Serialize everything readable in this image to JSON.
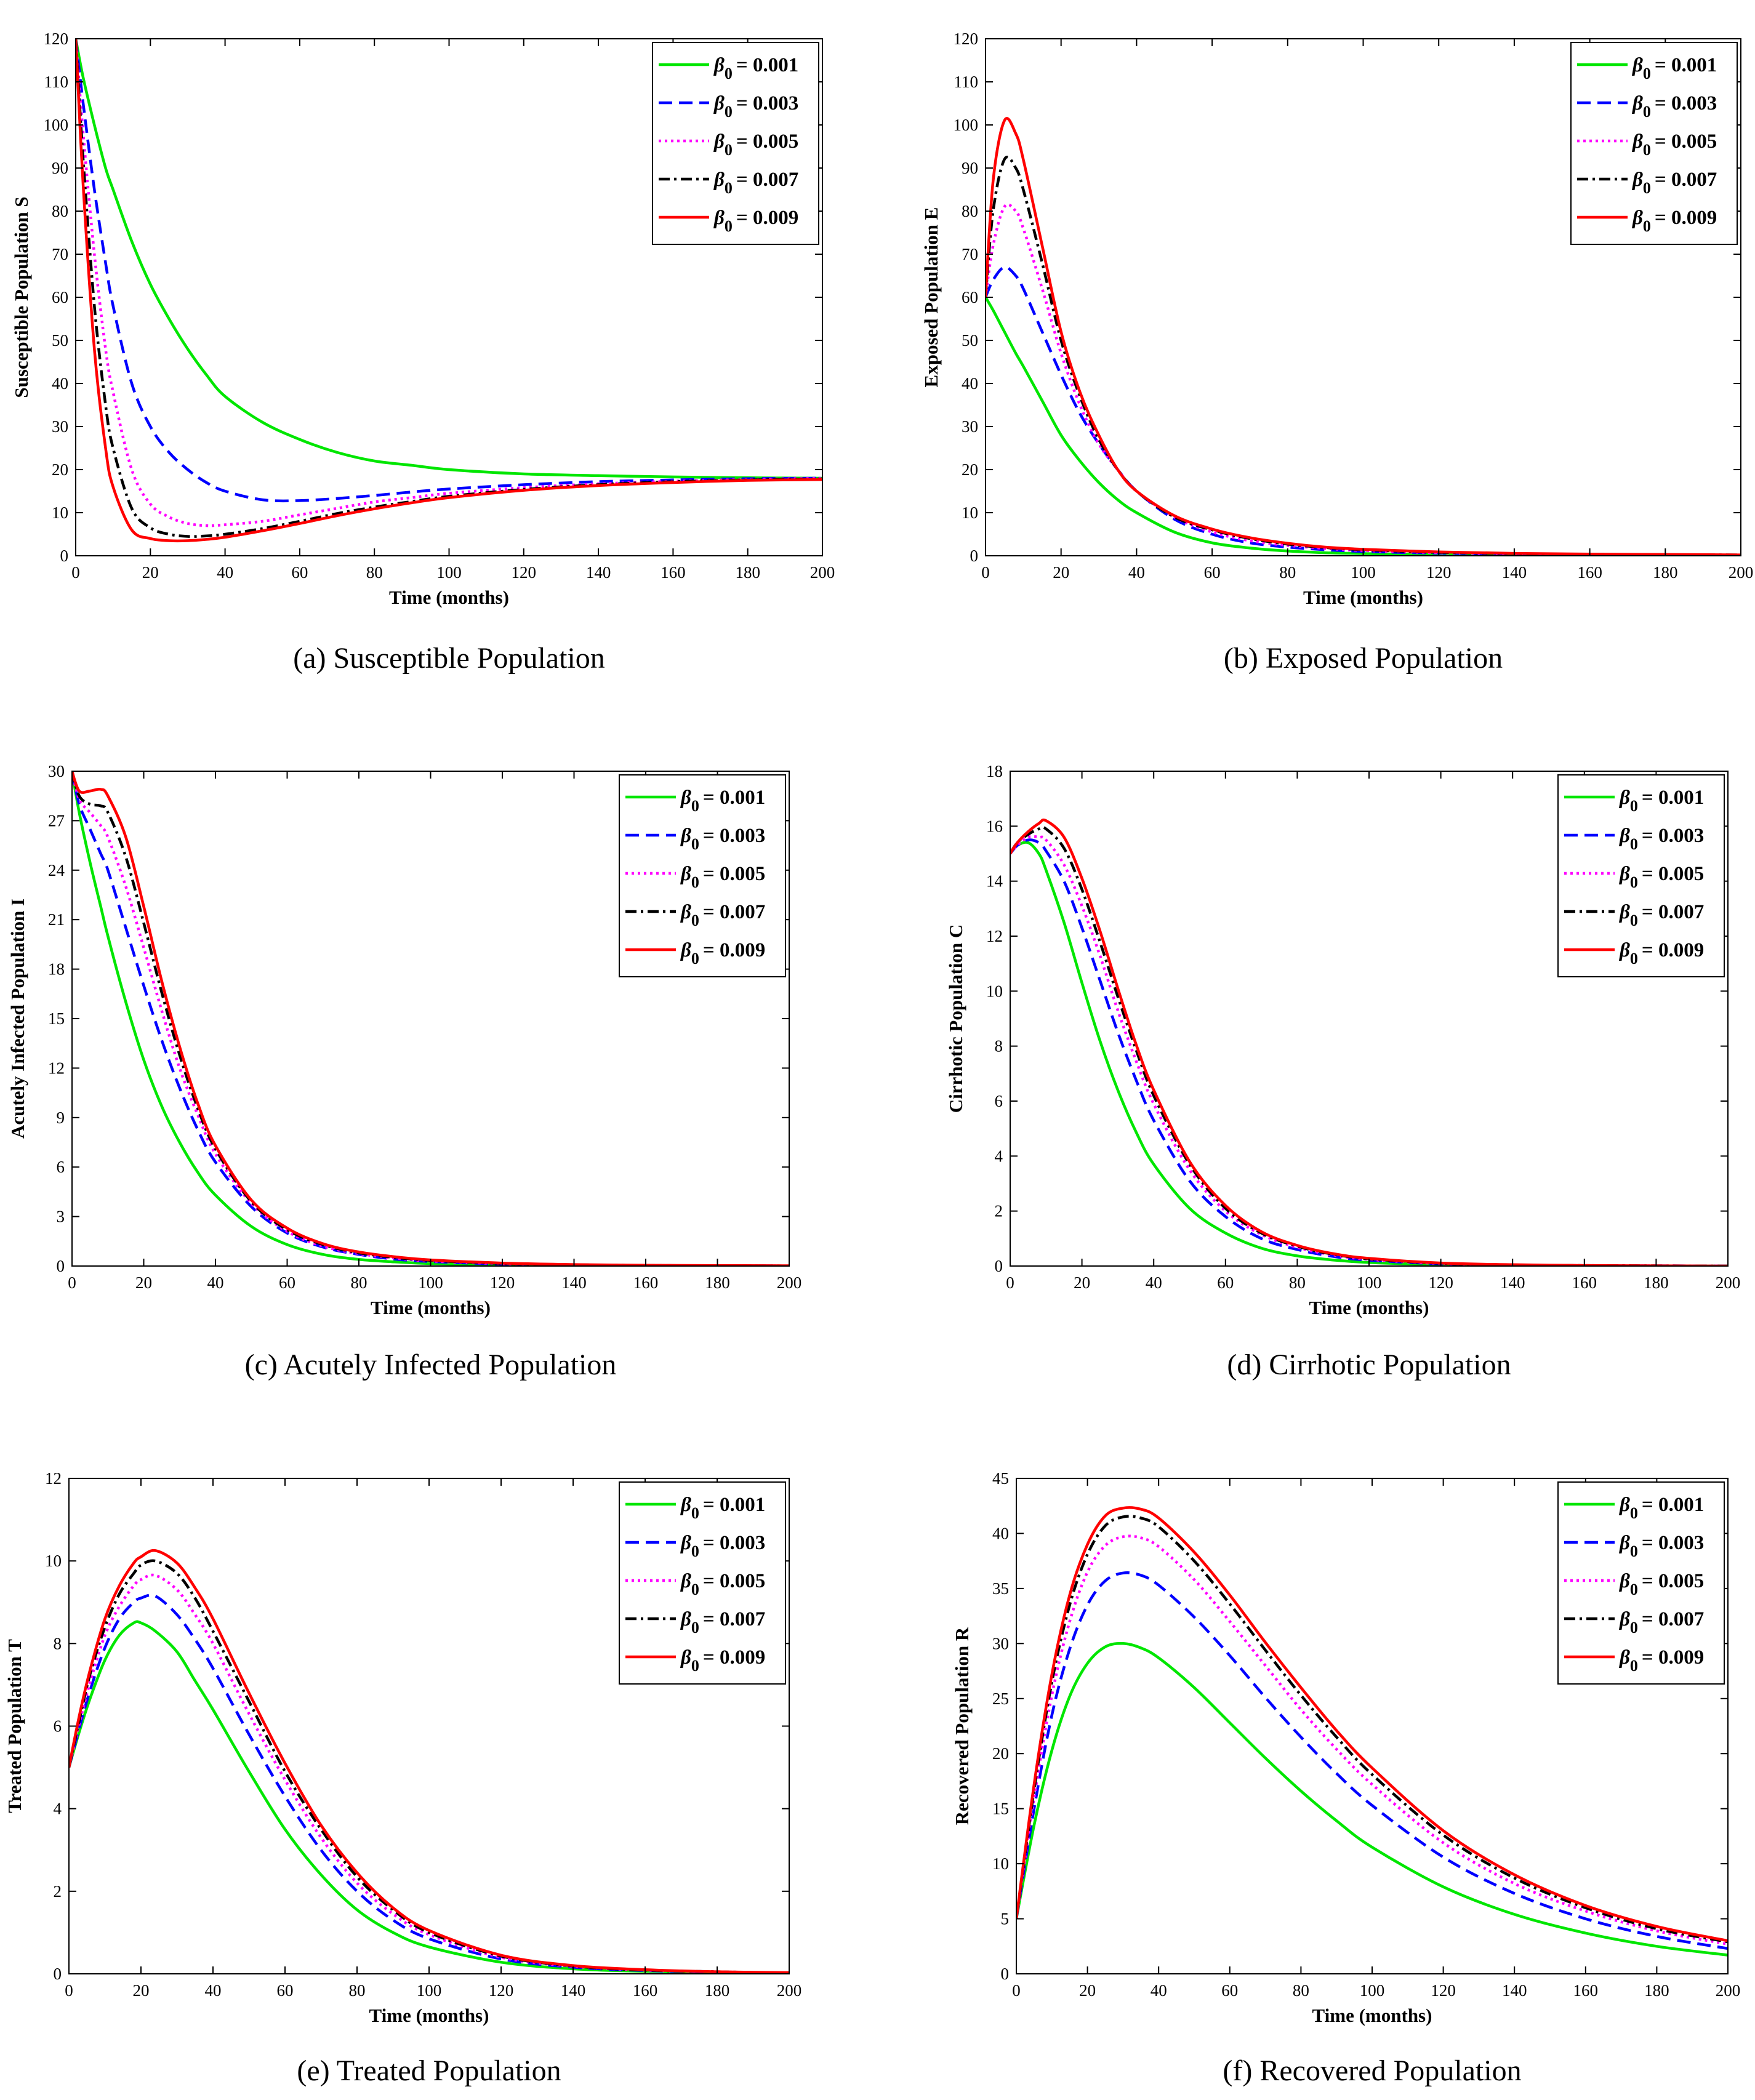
{
  "figure": {
    "legend_labels": [
      "= 0.001",
      "= 0.003",
      "= 0.005",
      "= 0.007",
      "= 0.009"
    ],
    "legend_symbol": "β",
    "legend_subscript": "0",
    "beta_values": [
      "0.001",
      "0.003",
      "0.005",
      "0.007",
      "0.009"
    ],
    "series_colors": [
      "#00e600",
      "#0000ff",
      "#ff00ff",
      "#000000",
      "#ff0000"
    ],
    "series_styles": [
      "solid",
      "dashed",
      "dotted",
      "dashdot",
      "solid"
    ]
  },
  "chart_data": [
    {
      "type": "line",
      "caption": "(a) Susceptible Population",
      "xlabel": "Time (months)",
      "ylabel": "Susceptible Population S",
      "xlim": [
        0,
        200
      ],
      "ylim": [
        0,
        120
      ],
      "xticks": [
        0,
        20,
        40,
        60,
        80,
        100,
        120,
        140,
        160,
        180,
        200
      ],
      "yticks": [
        0,
        10,
        20,
        30,
        40,
        50,
        60,
        70,
        80,
        90,
        100,
        110,
        120
      ],
      "legend_position": "top-right",
      "x": [
        0,
        2,
        5,
        8,
        10,
        15,
        20,
        25,
        30,
        35,
        40,
        50,
        60,
        70,
        80,
        90,
        100,
        120,
        140,
        160,
        180,
        200
      ],
      "series": [
        {
          "name": "β0 = 0.001",
          "values": [
            120,
            111,
            100,
            90,
            85,
            73,
            63,
            55,
            48,
            42,
            37,
            31,
            27,
            24,
            22,
            21,
            20,
            19,
            18.6,
            18.3,
            18.1,
            18
          ]
        },
        {
          "name": "β0 = 0.003",
          "values": [
            120,
            105,
            85,
            68,
            58,
            40,
            30,
            24,
            20,
            17,
            15,
            13,
            12.8,
            13.3,
            14,
            14.8,
            15.5,
            16.5,
            17.2,
            17.6,
            17.9,
            18
          ]
        },
        {
          "name": "β0 = 0.005",
          "values": [
            120,
            98,
            70,
            48,
            38,
            20,
            12,
            9,
            7.5,
            7,
            7.2,
            8,
            9.5,
            11,
            12.5,
            13.5,
            14.5,
            15.8,
            16.7,
            17.3,
            17.7,
            18
          ]
        },
        {
          "name": "β0 = 0.007",
          "values": [
            120,
            92,
            58,
            35,
            25,
            11,
            6.5,
            5,
            4.5,
            4.6,
            5,
            6.3,
            8,
            9.8,
            11.3,
            12.6,
            13.8,
            15.4,
            16.5,
            17.2,
            17.6,
            17.8
          ]
        },
        {
          "name": "β0 = 0.009",
          "values": [
            120,
            86,
            48,
            25,
            16,
            6,
            4,
            3.5,
            3.5,
            3.8,
            4.3,
            5.8,
            7.5,
            9.3,
            10.9,
            12.3,
            13.5,
            15.2,
            16.3,
            17,
            17.5,
            17.7
          ]
        }
      ]
    },
    {
      "type": "line",
      "caption": "(b) Exposed Population",
      "xlabel": "Time (months)",
      "ylabel": "Exposed Population E",
      "xlim": [
        0,
        200
      ],
      "ylim": [
        0,
        120
      ],
      "xticks": [
        0,
        20,
        40,
        60,
        80,
        100,
        120,
        140,
        160,
        180,
        200
      ],
      "yticks": [
        0,
        10,
        20,
        30,
        40,
        50,
        60,
        70,
        80,
        90,
        100,
        110,
        120
      ],
      "legend_position": "top-right",
      "x": [
        0,
        2,
        5,
        8,
        10,
        15,
        20,
        25,
        30,
        35,
        40,
        50,
        60,
        70,
        80,
        90,
        100,
        120,
        140,
        160,
        180,
        200
      ],
      "series": [
        {
          "name": "β0 = 0.001",
          "values": [
            60,
            57,
            52,
            47,
            44,
            36,
            28,
            22,
            17,
            13,
            10,
            5.5,
            3,
            1.8,
            1.1,
            0.7,
            0.5,
            0.3,
            0.2,
            0.1,
            0.1,
            0.05
          ]
        },
        {
          "name": "β0 = 0.003",
          "values": [
            60,
            64,
            67,
            65,
            62,
            52,
            42,
            33,
            26,
            20,
            15,
            8.5,
            5,
            3,
            2,
            1.4,
            1,
            0.6,
            0.4,
            0.3,
            0.2,
            0.1
          ]
        },
        {
          "name": "β0 = 0.005",
          "values": [
            60,
            72,
            81,
            80,
            76,
            62,
            47,
            35,
            26,
            20,
            15,
            9,
            5.5,
            3.5,
            2.4,
            1.7,
            1.2,
            0.7,
            0.5,
            0.3,
            0.2,
            0.15
          ]
        },
        {
          "name": "β0 = 0.007",
          "values": [
            60,
            80,
            92,
            90,
            85,
            68,
            50,
            37,
            27,
            20,
            15,
            9,
            6,
            4,
            2.7,
            1.9,
            1.4,
            0.8,
            0.5,
            0.35,
            0.25,
            0.2
          ]
        },
        {
          "name": "β0 = 0.009",
          "values": [
            60,
            87,
            101,
            98,
            92,
            72,
            52,
            38,
            28,
            20,
            15,
            9.3,
            6.2,
            4.2,
            2.9,
            2,
            1.5,
            0.9,
            0.55,
            0.4,
            0.3,
            0.2
          ]
        }
      ]
    },
    {
      "type": "line",
      "caption": "(c) Acutely Infected Population",
      "xlabel": "Time (months)",
      "ylabel": "Acutely Infected Population I",
      "xlim": [
        0,
        200
      ],
      "ylim": [
        0,
        30
      ],
      "xticks": [
        0,
        20,
        40,
        60,
        80,
        100,
        120,
        140,
        160,
        180,
        200
      ],
      "yticks": [
        0,
        3,
        6,
        9,
        12,
        15,
        18,
        21,
        24,
        27,
        30
      ],
      "legend_position": "top-right",
      "x": [
        0,
        2,
        5,
        8,
        10,
        15,
        20,
        25,
        30,
        35,
        40,
        50,
        60,
        70,
        80,
        90,
        100,
        120,
        140,
        160,
        180,
        200
      ],
      "series": [
        {
          "name": "β0 = 0.001",
          "values": [
            30,
            27.5,
            24.5,
            21.8,
            20,
            16,
            12.5,
            9.7,
            7.5,
            5.7,
            4.3,
            2.4,
            1.3,
            0.7,
            0.4,
            0.25,
            0.15,
            0.07,
            0.03,
            0.02,
            0.01,
            0
          ]
        },
        {
          "name": "β0 = 0.003",
          "values": [
            30,
            28,
            26.5,
            25,
            24,
            20.5,
            17,
            13.7,
            10.8,
            8.3,
            6.3,
            3.6,
            2,
            1.15,
            0.7,
            0.42,
            0.27,
            0.12,
            0.06,
            0.03,
            0.02,
            0.01
          ]
        },
        {
          "name": "β0 = 0.005",
          "values": [
            30,
            28.3,
            27.5,
            26.7,
            26,
            23,
            19.3,
            15.5,
            12,
            9.2,
            6.8,
            3.8,
            2.1,
            1.2,
            0.75,
            0.48,
            0.3,
            0.14,
            0.07,
            0.04,
            0.02,
            0.01
          ]
        },
        {
          "name": "β0 = 0.007",
          "values": [
            30,
            28.5,
            28,
            27.9,
            27.5,
            24.8,
            20.8,
            16.6,
            12.8,
            9.6,
            7.1,
            3.9,
            2.2,
            1.3,
            0.8,
            0.52,
            0.34,
            0.16,
            0.08,
            0.04,
            0.02,
            0.01
          ]
        },
        {
          "name": "β0 = 0.009",
          "values": [
            30,
            28.8,
            28.8,
            28.9,
            28.5,
            26,
            21.8,
            17.3,
            13.3,
            9.9,
            7.3,
            4,
            2.3,
            1.35,
            0.85,
            0.56,
            0.37,
            0.18,
            0.09,
            0.05,
            0.03,
            0.02
          ]
        }
      ]
    },
    {
      "type": "line",
      "caption": "(d) Cirrhotic Population",
      "xlabel": "Time (months)",
      "ylabel": "Cirrhotic Population C",
      "xlim": [
        0,
        200
      ],
      "ylim": [
        0,
        18
      ],
      "xticks": [
        0,
        20,
        40,
        60,
        80,
        100,
        120,
        140,
        160,
        180,
        200
      ],
      "yticks": [
        0,
        2,
        4,
        6,
        8,
        10,
        12,
        14,
        16,
        18
      ],
      "legend_position": "top-right",
      "x": [
        0,
        2,
        5,
        8,
        10,
        15,
        20,
        25,
        30,
        35,
        40,
        50,
        60,
        70,
        80,
        90,
        100,
        120,
        140,
        160,
        180,
        200
      ],
      "series": [
        {
          "name": "β0 = 0.001",
          "values": [
            15,
            15.3,
            15.4,
            15,
            14.4,
            12.5,
            10.3,
            8.2,
            6.4,
            4.9,
            3.7,
            2.1,
            1.2,
            0.65,
            0.37,
            0.22,
            0.13,
            0.05,
            0.02,
            0.01,
            0,
            0
          ]
        },
        {
          "name": "β0 = 0.003",
          "values": [
            15,
            15.3,
            15.5,
            15.4,
            15.1,
            14,
            12.3,
            10.4,
            8.5,
            6.8,
            5.3,
            3.1,
            1.8,
            1,
            0.6,
            0.35,
            0.21,
            0.08,
            0.03,
            0.01,
            0.01,
            0
          ]
        },
        {
          "name": "β0 = 0.005",
          "values": [
            15,
            15.3,
            15.6,
            15.6,
            15.5,
            14.6,
            13.1,
            11.3,
            9.3,
            7.5,
            5.9,
            3.5,
            2,
            1.15,
            0.68,
            0.4,
            0.24,
            0.09,
            0.04,
            0.02,
            0.01,
            0
          ]
        },
        {
          "name": "β0 = 0.007",
          "values": [
            15,
            15.4,
            15.7,
            15.9,
            15.9,
            15.2,
            13.7,
            11.8,
            9.8,
            7.9,
            6.2,
            3.7,
            2.1,
            1.2,
            0.72,
            0.43,
            0.26,
            0.1,
            0.04,
            0.02,
            0.01,
            0
          ]
        },
        {
          "name": "β0 = 0.009",
          "values": [
            15,
            15.4,
            15.8,
            16.1,
            16.2,
            15.6,
            14.1,
            12.2,
            10.1,
            8.1,
            6.4,
            3.8,
            2.2,
            1.25,
            0.75,
            0.45,
            0.28,
            0.11,
            0.05,
            0.02,
            0.01,
            0
          ]
        }
      ]
    },
    {
      "type": "line",
      "caption": "(e) Treated Population",
      "xlabel": "Time (months)",
      "ylabel": "Treated Population T",
      "xlim": [
        0,
        200
      ],
      "ylim": [
        0,
        12
      ],
      "xticks": [
        0,
        20,
        40,
        60,
        80,
        100,
        120,
        140,
        160,
        180,
        200
      ],
      "yticks": [
        0,
        2,
        4,
        6,
        8,
        10,
        12
      ],
      "legend_position": "top-right",
      "x": [
        0,
        3,
        6,
        10,
        14,
        18,
        20,
        24,
        30,
        35,
        40,
        50,
        60,
        70,
        80,
        90,
        100,
        120,
        140,
        160,
        180,
        200
      ],
      "series": [
        {
          "name": "β0 = 0.001",
          "values": [
            5,
            5.9,
            6.7,
            7.6,
            8.2,
            8.5,
            8.5,
            8.3,
            7.8,
            7.1,
            6.4,
            4.9,
            3.5,
            2.4,
            1.55,
            1,
            0.65,
            0.28,
            0.12,
            0.06,
            0.03,
            0.02
          ]
        },
        {
          "name": "β0 = 0.003",
          "values": [
            5,
            6,
            6.9,
            7.9,
            8.6,
            9,
            9.1,
            9.15,
            8.7,
            8.1,
            7.4,
            5.8,
            4.3,
            3,
            2,
            1.3,
            0.85,
            0.36,
            0.16,
            0.08,
            0.04,
            0.02
          ]
        },
        {
          "name": "β0 = 0.005",
          "values": [
            5,
            6.1,
            7.1,
            8.2,
            8.9,
            9.4,
            9.55,
            9.65,
            9.3,
            8.7,
            8,
            6.3,
            4.7,
            3.3,
            2.2,
            1.45,
            0.95,
            0.4,
            0.18,
            0.09,
            0.05,
            0.02
          ]
        },
        {
          "name": "β0 = 0.007",
          "values": [
            5,
            6.2,
            7.3,
            8.4,
            9.2,
            9.7,
            9.9,
            10,
            9.7,
            9.1,
            8.3,
            6.6,
            4.9,
            3.5,
            2.35,
            1.55,
            1,
            0.43,
            0.19,
            0.09,
            0.05,
            0.02
          ]
        },
        {
          "name": "β0 = 0.009",
          "values": [
            5,
            6.3,
            7.4,
            8.6,
            9.4,
            9.95,
            10.1,
            10.25,
            9.95,
            9.35,
            8.6,
            6.8,
            5.1,
            3.6,
            2.45,
            1.6,
            1.05,
            0.45,
            0.2,
            0.1,
            0.05,
            0.03
          ]
        }
      ]
    },
    {
      "type": "line",
      "caption": "(f) Recovered Population",
      "xlabel": "Time (months)",
      "ylabel": "Recovered Population R",
      "xlim": [
        0,
        200
      ],
      "ylim": [
        0,
        45
      ],
      "xticks": [
        0,
        20,
        40,
        60,
        80,
        100,
        120,
        140,
        160,
        180,
        200
      ],
      "yticks": [
        0,
        5,
        10,
        15,
        20,
        25,
        30,
        35,
        40,
        45
      ],
      "legend_position": "top-right",
      "x": [
        0,
        5,
        10,
        15,
        20,
        25,
        30,
        35,
        40,
        50,
        60,
        70,
        80,
        90,
        100,
        120,
        140,
        160,
        180,
        200
      ],
      "series": [
        {
          "name": "β0 = 0.001",
          "values": [
            5,
            13.5,
            20.3,
            25.2,
            28.2,
            29.7,
            30,
            29.6,
            28.7,
            26,
            22.8,
            19.6,
            16.6,
            13.9,
            11.5,
            7.9,
            5.4,
            3.7,
            2.5,
            1.7
          ]
        },
        {
          "name": "β0 = 0.003",
          "values": [
            5,
            15,
            23.5,
            29.5,
            33.5,
            35.7,
            36.4,
            36.2,
            35.3,
            32.4,
            28.9,
            25.1,
            21.5,
            18.2,
            15.3,
            10.6,
            7.3,
            5,
            3.4,
            2.3
          ]
        },
        {
          "name": "β0 = 0.005",
          "values": [
            5,
            16,
            25.3,
            32,
            36.5,
            38.9,
            39.7,
            39.6,
            38.8,
            35.8,
            32,
            28,
            24,
            20.4,
            17.2,
            11.9,
            8.2,
            5.7,
            3.9,
            2.7
          ]
        },
        {
          "name": "β0 = 0.007",
          "values": [
            5,
            16.7,
            26.5,
            33.5,
            38.1,
            40.7,
            41.5,
            41.4,
            40.6,
            37.5,
            33.6,
            29.4,
            25.3,
            21.5,
            18.1,
            12.6,
            8.7,
            6,
            4.1,
            2.9
          ]
        },
        {
          "name": "β0 = 0.009",
          "values": [
            5,
            17.2,
            27.2,
            34.4,
            39,
            41.6,
            42.3,
            42.2,
            41.4,
            38.3,
            34.4,
            30.1,
            26,
            22.1,
            18.7,
            13,
            9,
            6.2,
            4.3,
            3
          ]
        }
      ]
    }
  ]
}
